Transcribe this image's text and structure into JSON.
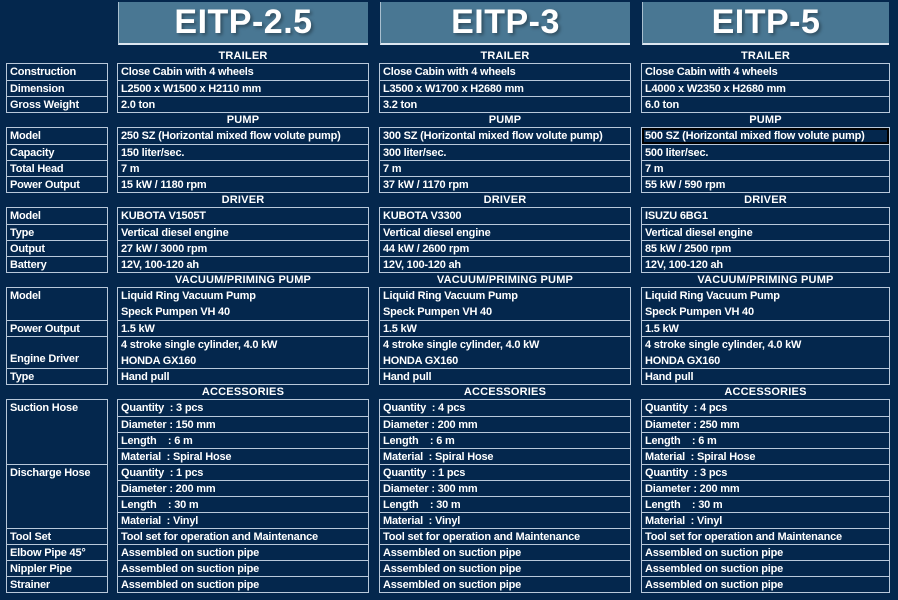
{
  "colors": {
    "background": "#04274d",
    "title_fill": "#497793",
    "cell_border": "#b9c9db",
    "text": "#ffffff",
    "active_cell_border": "#000000"
  },
  "section_headers": {
    "trailer": "TRAILER",
    "pump": "PUMP",
    "driver": "DRIVER",
    "vacuum": "VACUUM/PRIMING PUMP",
    "accessories": "ACCESSORIES"
  },
  "labels": {
    "trailer": [
      "Construction",
      "Dimension",
      "Gross Weight"
    ],
    "pump": [
      "Model",
      "Capacity",
      "Total Head",
      "Power Output"
    ],
    "driver": [
      "Model",
      "Type",
      "Output",
      "Battery"
    ],
    "vacuum": [
      "Model",
      "Power Output",
      "Engine Driver",
      "Type"
    ],
    "accessories": [
      "Suction Hose",
      "Discharge Hose",
      "Tool Set",
      "Elbow Pipe 45°",
      "Nippler Pipe",
      "Strainer"
    ]
  },
  "products": [
    {
      "title": "EITP-2.5",
      "trailer": [
        "Close Cabin with 4 wheels",
        "L2500 x W1500 x H2110 mm",
        "2.0 ton"
      ],
      "pump": [
        "250 SZ (Horizontal mixed flow volute pump)",
        "150 liter/sec.",
        "7 m",
        "15 kW / 1180 rpm"
      ],
      "driver": [
        "KUBOTA V1505T",
        "Vertical diesel engine",
        "27 kW / 3000 rpm",
        "12V, 100-120 ah"
      ],
      "vacuum_model": [
        "Liquid Ring Vacuum Pump",
        "Speck Pumpen VH 40"
      ],
      "vacuum_power": "1.5 kW",
      "vacuum_engine": [
        "4 stroke single cylinder, 4.0 kW",
        "HONDA GX160"
      ],
      "vacuum_type": "Hand pull",
      "suction_hose": [
        "Quantity  : 3 pcs",
        "Diameter : 150 mm",
        "Length    : 6 m",
        "Material  : Spiral Hose"
      ],
      "discharge_hose": [
        "Quantity  : 1 pcs",
        "Diameter : 200 mm",
        "Length    : 30 m",
        "Material  : Vinyl"
      ],
      "tool_set": "Tool set for operation and Maintenance",
      "elbow_pipe": "Assembled on suction pipe",
      "nippler_pipe": "Assembled on suction pipe",
      "strainer": "Assembled on suction pipe"
    },
    {
      "title": "EITP-3",
      "trailer": [
        "Close Cabin with 4 wheels",
        "L3500 x W1700 x H2680 mm",
        "3.2 ton"
      ],
      "pump": [
        "300 SZ (Horizontal mixed flow volute pump)",
        "300 liter/sec.",
        "7 m",
        "37 kW / 1170 rpm"
      ],
      "driver": [
        "KUBOTA V3300",
        "Vertical diesel engine",
        "44 kW / 2600 rpm",
        "12V, 100-120 ah"
      ],
      "vacuum_model": [
        "Liquid Ring Vacuum Pump",
        "Speck Pumpen VH 40"
      ],
      "vacuum_power": "1.5 kW",
      "vacuum_engine": [
        "4 stroke single cylinder, 4.0 kW",
        "HONDA GX160"
      ],
      "vacuum_type": "Hand pull",
      "suction_hose": [
        "Quantity  : 4 pcs",
        "Diameter : 200 mm",
        "Length    : 6 m",
        "Material  : Spiral Hose"
      ],
      "discharge_hose": [
        "Quantity  : 1 pcs",
        "Diameter : 300 mm",
        "Length    : 30 m",
        "Material  : Vinyl"
      ],
      "tool_set": "Tool set for operation and Maintenance",
      "elbow_pipe": "Assembled on suction pipe",
      "nippler_pipe": "Assembled on suction pipe",
      "strainer": "Assembled on suction pipe"
    },
    {
      "title": "EITP-5",
      "trailer": [
        "Close Cabin with 4 wheels",
        "L4000 x W2350 x H2680 mm",
        "6.0 ton"
      ],
      "pump": [
        "500 SZ (Horizontal mixed flow volute pump)",
        "500 liter/sec.",
        "7 m",
        "55 kW / 590 rpm"
      ],
      "driver": [
        "ISUZU 6BG1",
        "Vertical diesel engine",
        "85 kW / 2500 rpm",
        "12V, 100-120 ah"
      ],
      "vacuum_model": [
        "Liquid Ring Vacuum Pump",
        "Speck Pumpen VH 40"
      ],
      "vacuum_power": "1.5 kW",
      "vacuum_engine": [
        "4 stroke single cylinder, 4.0 kW",
        "HONDA GX160"
      ],
      "vacuum_type": "Hand pull",
      "suction_hose": [
        "Quantity  : 4 pcs",
        "Diameter : 250 mm",
        "Length    : 6 m",
        "Material  : Spiral Hose"
      ],
      "discharge_hose": [
        "Quantity  : 3 pcs",
        "Diameter : 200 mm",
        "Length    : 30 m",
        "Material  : Vinyl"
      ],
      "tool_set": "Tool set for operation and Maintenance",
      "elbow_pipe": "Assembled on suction pipe",
      "nippler_pipe": "Assembled on suction pipe",
      "strainer": "Assembled on suction pipe"
    }
  ]
}
